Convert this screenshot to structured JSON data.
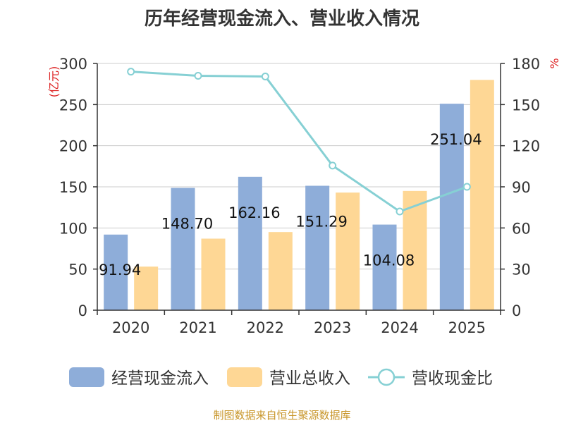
{
  "chart_data": {
    "type": "bar",
    "title": "历年经营现金流入、营业收入情况",
    "categories": [
      "2020",
      "2021",
      "2022",
      "2023",
      "2024",
      "2025"
    ],
    "series": [
      {
        "name": "经营现金流入",
        "type": "bar",
        "axis": "left",
        "color": "#8eadd9",
        "values": [
          91.94,
          148.7,
          162.16,
          151.29,
          104.08,
          251.04
        ]
      },
      {
        "name": "营业总收入",
        "type": "bar",
        "axis": "left",
        "color": "#fed795",
        "values": [
          53,
          87,
          95,
          143,
          145,
          280
        ]
      },
      {
        "name": "营收现金比",
        "type": "line",
        "axis": "right",
        "color": "#86d0d4",
        "values": [
          174,
          171,
          170.5,
          105.5,
          72,
          90
        ]
      }
    ],
    "data_labels": [
      "91.94",
      "148.70",
      "162.16",
      "151.29",
      "104.08",
      "251.04"
    ],
    "left_axis": {
      "label": "(亿元)",
      "min": 0,
      "max": 300,
      "ticks": [
        0,
        50,
        100,
        150,
        200,
        250,
        300
      ]
    },
    "right_axis": {
      "label": "%",
      "min": 0,
      "max": 180,
      "ticks": [
        0,
        30,
        60,
        90,
        120,
        150,
        180
      ]
    },
    "grid": true,
    "legend_position": "bottom"
  },
  "source": "制图数据来自恒生聚源数据库"
}
